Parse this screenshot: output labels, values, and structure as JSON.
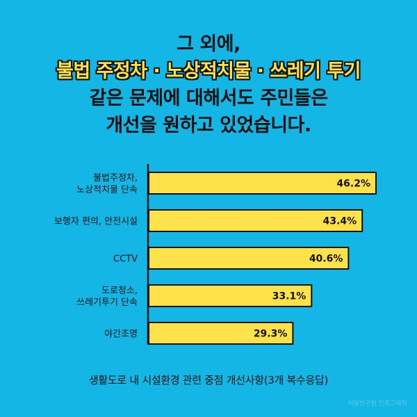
{
  "title": {
    "line1": "그 외에,",
    "line2": "불법 주정차 · 노상적치물 · 쓰레기 투기",
    "line3": "같은 문제에 대해서도 주민들은",
    "line4": "개선을 원하고 있었습니다."
  },
  "chart_data": {
    "type": "bar",
    "orientation": "horizontal",
    "categories": [
      "불법주정차,\n노상적치물 단속",
      "보행자 편의, 안전시설",
      "CCTV",
      "도로청소,\n쓰레기투기 단속",
      "야간조명"
    ],
    "values": [
      46.2,
      43.4,
      40.6,
      33.1,
      29.3
    ],
    "value_labels": [
      "46.2%",
      "43.4%",
      "40.6%",
      "33.1%",
      "29.3%"
    ],
    "xlim": [
      0,
      50
    ],
    "bar_color": "#ffe14a",
    "grid": false,
    "caption": "생활도로 내 시설환경 관련 중점 개선사항(3개 복수응답)"
  },
  "colors": {
    "background": "#14b6e6",
    "bar": "#ffe14a",
    "highlight": "#ffe14a"
  },
  "credit": "서울연구원 인포그래픽"
}
